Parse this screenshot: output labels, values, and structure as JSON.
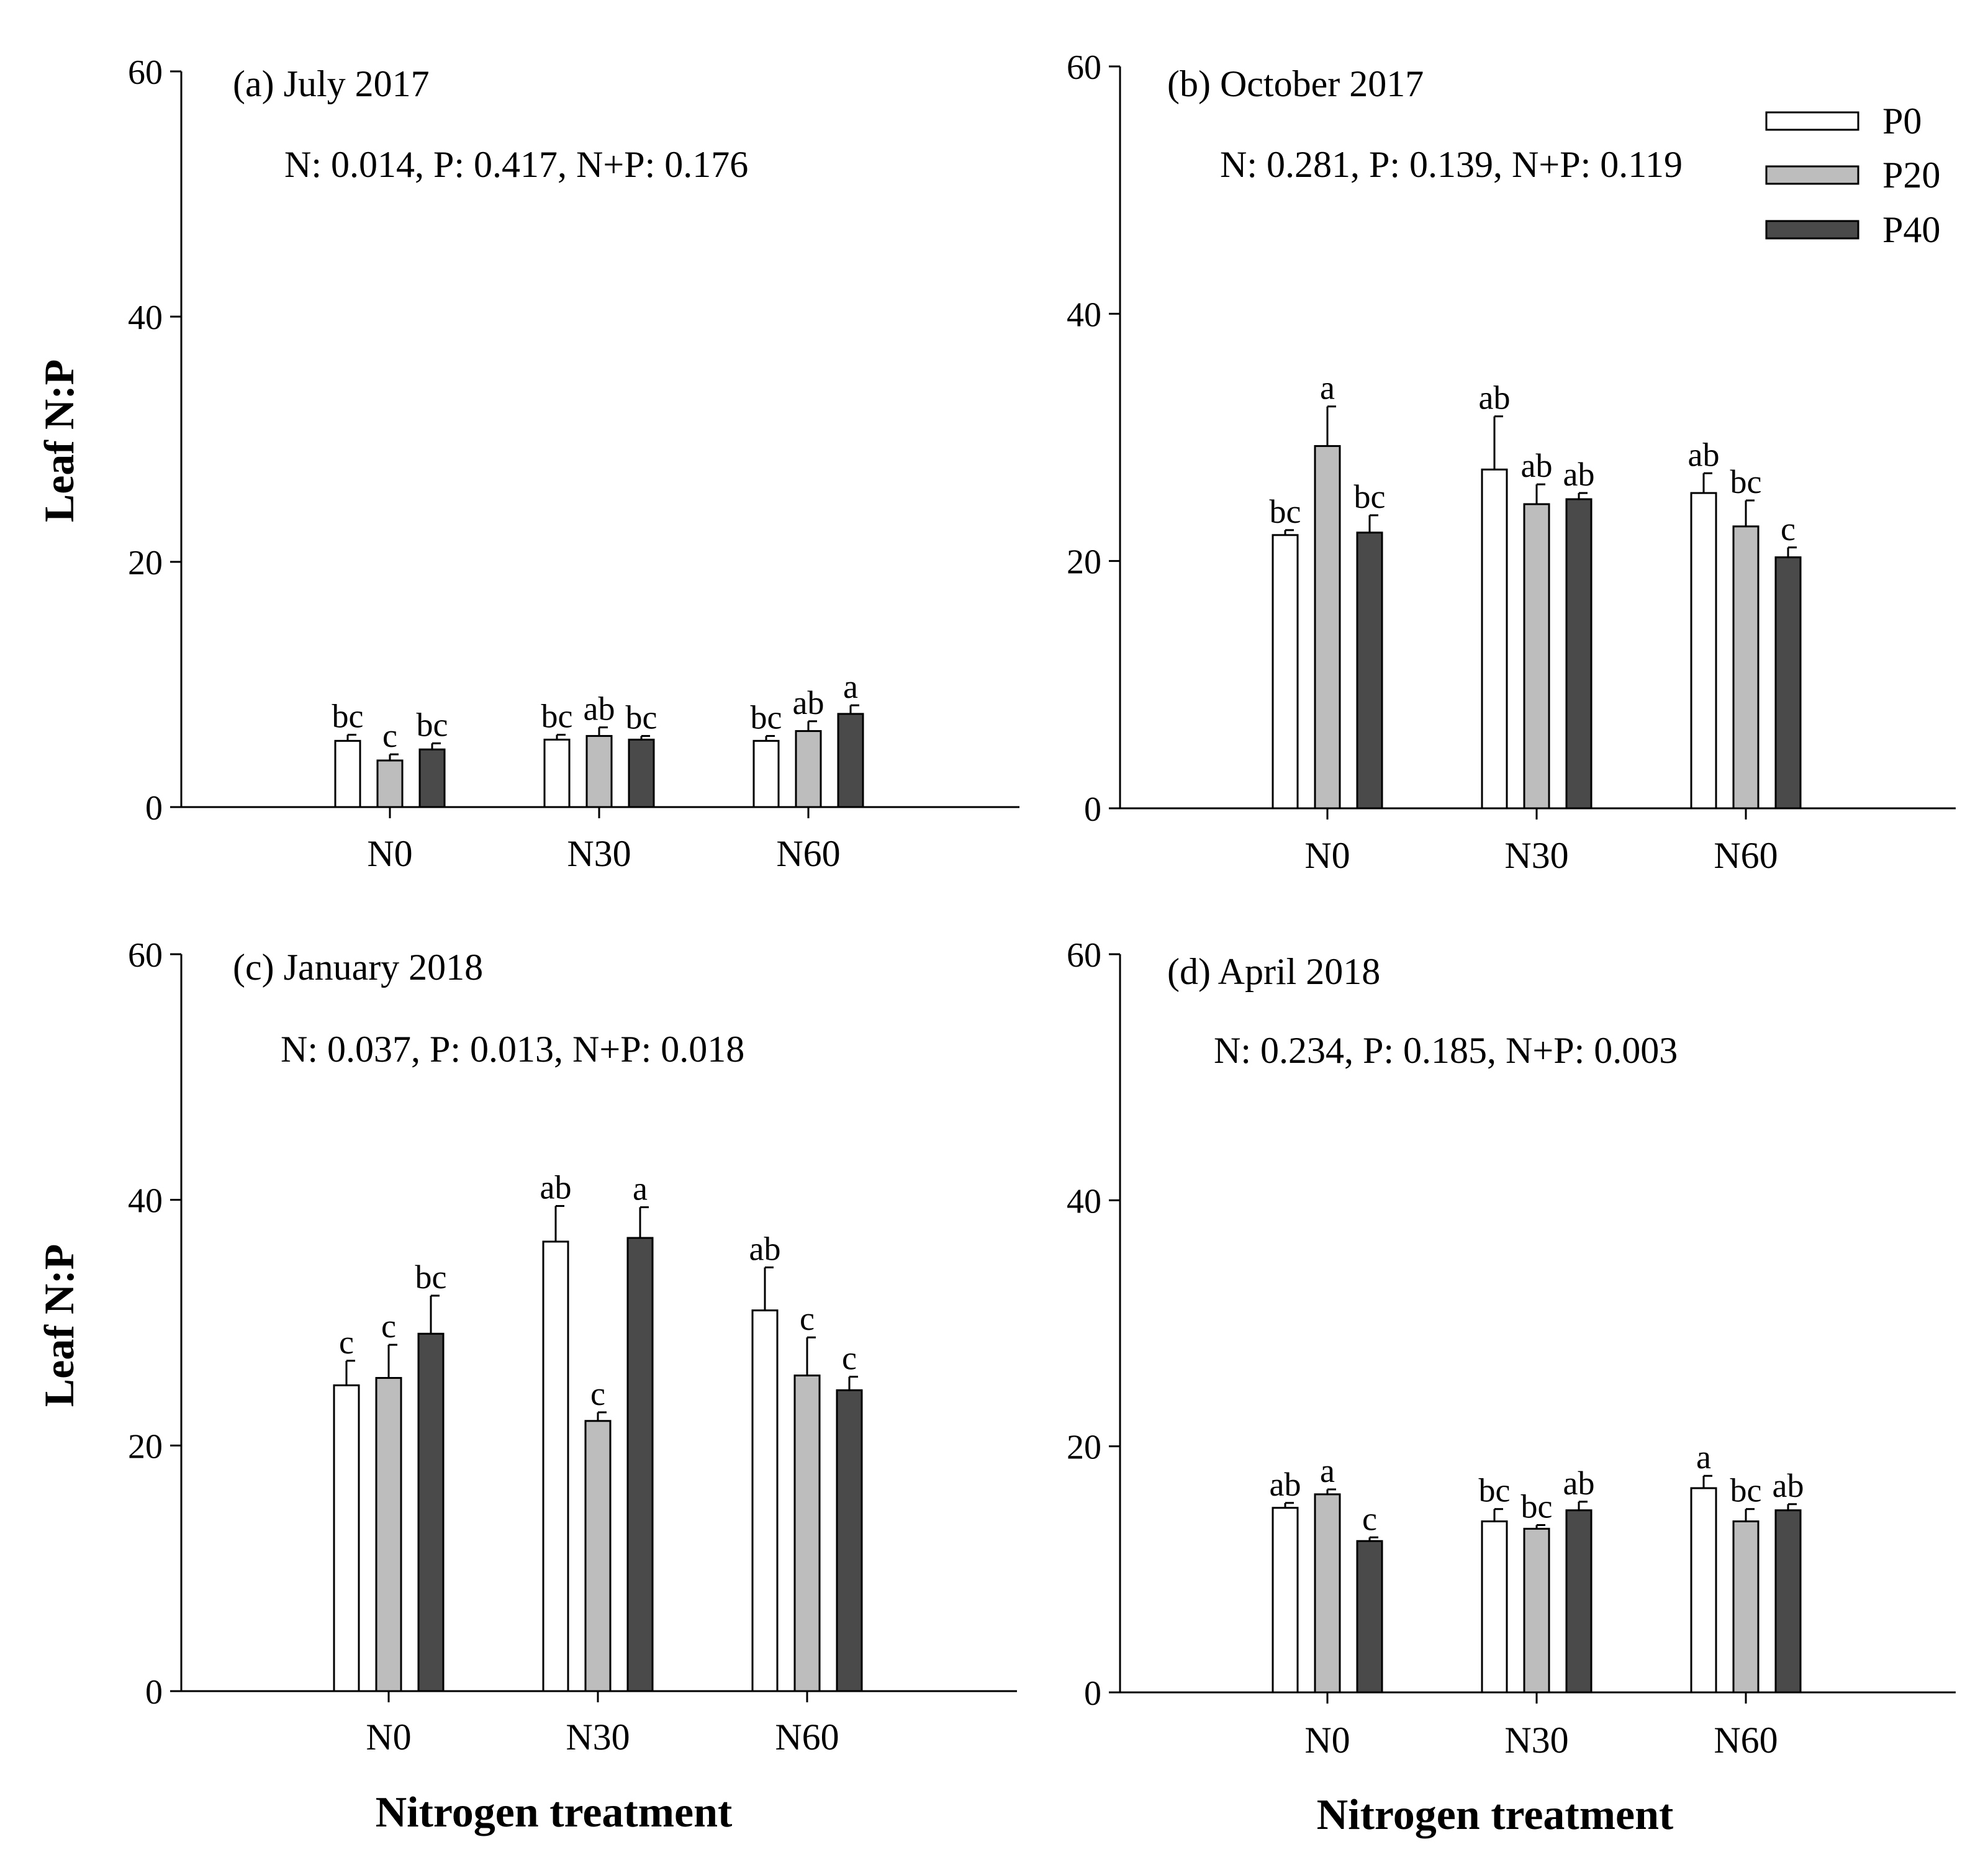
{
  "figure": {
    "ylabel": "Leaf N:P",
    "xlabel": "Nitrogen treatment",
    "legend": [
      {
        "name": "P0",
        "color": "#ffffff"
      },
      {
        "name": "P20",
        "color": "#bdbdbd"
      },
      {
        "name": "P40",
        "color": "#4a4a4a"
      }
    ]
  },
  "chart_data": [
    {
      "type": "bar",
      "title": "(a) July 2017",
      "stats": "N: 0.014, P: 0.417, N+P: 0.176",
      "categories": [
        "N0",
        "N30",
        "N60"
      ],
      "ylim": [
        0,
        60
      ],
      "yticks": [
        0,
        20,
        40,
        60
      ],
      "ylabel": "Leaf N:P",
      "xlabel": "",
      "series": [
        {
          "name": "P0",
          "values": [
            5.4,
            5.5,
            5.4
          ],
          "errors": [
            0.5,
            0.4,
            0.4
          ],
          "letters": [
            "bc",
            "bc",
            "bc"
          ]
        },
        {
          "name": "P20",
          "values": [
            3.8,
            5.8,
            6.2
          ],
          "errors": [
            0.5,
            0.7,
            0.8
          ],
          "letters": [
            "c",
            "ab",
            "ab"
          ]
        },
        {
          "name": "P40",
          "values": [
            4.7,
            5.5,
            7.6
          ],
          "errors": [
            0.5,
            0.3,
            0.7
          ],
          "letters": [
            "bc",
            "bc",
            "a"
          ]
        }
      ]
    },
    {
      "type": "bar",
      "title": "(b) October 2017",
      "stats": "N: 0.281, P: 0.139, N+P: 0.119",
      "categories": [
        "N0",
        "N30",
        "N60"
      ],
      "ylim": [
        0,
        60
      ],
      "yticks": [
        0,
        20,
        40,
        60
      ],
      "ylabel": "",
      "xlabel": "",
      "series": [
        {
          "name": "P0",
          "values": [
            22.1,
            27.4,
            25.5
          ],
          "errors": [
            0.4,
            4.3,
            1.6
          ],
          "letters": [
            "bc",
            "ab",
            "ab"
          ]
        },
        {
          "name": "P20",
          "values": [
            29.3,
            24.6,
            22.8
          ],
          "errors": [
            3.2,
            1.6,
            2.1
          ],
          "letters": [
            "a",
            "ab",
            "bc"
          ]
        },
        {
          "name": "P40",
          "values": [
            22.3,
            25.0,
            20.3
          ],
          "errors": [
            1.4,
            0.5,
            0.8
          ],
          "letters": [
            "bc",
            "ab",
            "c"
          ]
        }
      ]
    },
    {
      "type": "bar",
      "title": "(c) January 2018",
      "stats": "N: 0.037, P: 0.013, N+P: 0.018",
      "categories": [
        "N0",
        "N30",
        "N60"
      ],
      "ylim": [
        0,
        60
      ],
      "yticks": [
        0,
        20,
        40,
        60
      ],
      "ylabel": "Leaf N:P",
      "xlabel": "Nitrogen treatment",
      "series": [
        {
          "name": "P0",
          "values": [
            24.9,
            36.6,
            31.0
          ],
          "errors": [
            2.0,
            2.9,
            3.5
          ],
          "letters": [
            "c",
            "ab",
            "ab"
          ]
        },
        {
          "name": "P20",
          "values": [
            25.5,
            22.0,
            25.7
          ],
          "errors": [
            2.7,
            0.7,
            3.1
          ],
          "letters": [
            "c",
            "c",
            "c"
          ]
        },
        {
          "name": "P40",
          "values": [
            29.1,
            36.9,
            24.5
          ],
          "errors": [
            3.1,
            2.5,
            1.1
          ],
          "letters": [
            "bc",
            "a",
            "c"
          ]
        }
      ]
    },
    {
      "type": "bar",
      "title": "(d) April 2018",
      "stats": "N: 0.234, P: 0.185, N+P: 0.003",
      "categories": [
        "N0",
        "N30",
        "N60"
      ],
      "ylim": [
        0,
        60
      ],
      "yticks": [
        0,
        20,
        40,
        60
      ],
      "ylabel": "",
      "xlabel": "Nitrogen treatment",
      "series": [
        {
          "name": "P0",
          "values": [
            15.0,
            13.9,
            16.6
          ],
          "errors": [
            0.4,
            1.0,
            1.0
          ],
          "letters": [
            "ab",
            "bc",
            "a"
          ]
        },
        {
          "name": "P20",
          "values": [
            16.1,
            13.3,
            13.9
          ],
          "errors": [
            0.4,
            0.3,
            1.0
          ],
          "letters": [
            "a",
            "bc",
            "bc"
          ]
        },
        {
          "name": "P40",
          "values": [
            12.3,
            14.8,
            14.8
          ],
          "errors": [
            0.3,
            0.7,
            0.5
          ],
          "letters": [
            "c",
            "ab",
            "ab"
          ]
        }
      ]
    }
  ]
}
